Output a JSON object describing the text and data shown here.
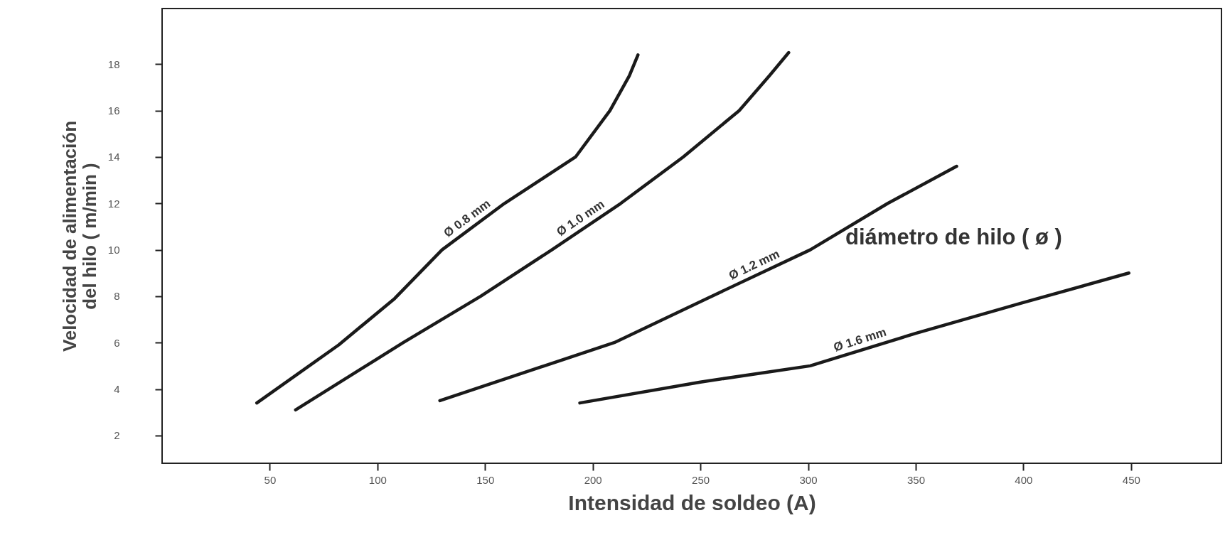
{
  "chart_data": {
    "type": "line",
    "xlabel": "Intensidad de soldeo (A)",
    "ylabel": "Velocidad de alimentación\ndel hilo ( m/min )",
    "annotations": [
      "diámetro de hilo ( ø )"
    ],
    "xlim": [
      0,
      492
    ],
    "ylim": [
      0.8,
      20.4
    ],
    "xticks": [
      50,
      100,
      150,
      200,
      250,
      300,
      350,
      400,
      450
    ],
    "yticks": [
      2,
      4,
      6,
      8,
      10,
      12,
      14,
      16,
      18
    ],
    "grid": false,
    "marker": "none",
    "line_style": "solid",
    "series": [
      {
        "name": "Ø 0.8 mm",
        "color": "#1a1a1a",
        "x": [
          44,
          82,
          108,
          130,
          159,
          192,
          208,
          217,
          221
        ],
        "values": [
          3.4,
          5.9,
          7.9,
          10.0,
          12.0,
          14.0,
          16.0,
          17.5,
          18.4
        ]
      },
      {
        "name": "Ø 1.0 mm",
        "color": "#1a1a1a",
        "x": [
          62,
          112,
          148,
          181,
          213,
          242,
          268,
          282,
          291
        ],
        "values": [
          3.1,
          6.0,
          8.0,
          10.0,
          12.0,
          14.0,
          16.0,
          17.5,
          18.5
        ]
      },
      {
        "name": "Ø 1.2 mm",
        "color": "#1a1a1a",
        "x": [
          129,
          210,
          253,
          301,
          337,
          369
        ],
        "values": [
          3.5,
          6.0,
          7.9,
          10.0,
          12.0,
          13.6
        ]
      },
      {
        "name": "Ø 1.6 mm",
        "color": "#1a1a1a",
        "x": [
          194,
          250,
          301,
          350,
          399,
          449
        ],
        "values": [
          3.4,
          4.3,
          5.0,
          6.4,
          7.7,
          9.0
        ]
      }
    ]
  }
}
